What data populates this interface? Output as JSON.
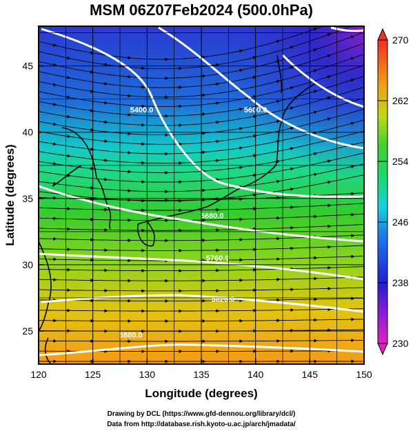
{
  "chart_data": {
    "type": "heatmap",
    "title": "MSM 06Z07Feb2024 (500.0hPa)",
    "xlabel": "Longitude (degrees)",
    "ylabel": "Latitude  (degrees)",
    "xlim": [
      120,
      150
    ],
    "ylim": [
      22.5,
      48
    ],
    "xticks": [
      "120",
      "125",
      "130",
      "135",
      "140",
      "145",
      "150"
    ],
    "yticks": [
      "25",
      "30",
      "35",
      "40",
      "45"
    ],
    "colorbar": {
      "range": [
        230,
        270
      ],
      "ticks": [
        "230",
        "238",
        "246",
        "254",
        "262",
        "270"
      ]
    },
    "contours": [
      {
        "label": "5400.0",
        "lon": 129.5,
        "lat": 41.5
      },
      {
        "label": "5600.0",
        "lon": 140,
        "lat": 41.5
      },
      {
        "label": "5680.0",
        "lon": 136,
        "lat": 33.5
      },
      {
        "label": "5760.0",
        "lon": 136.5,
        "lat": 30.3
      },
      {
        "label": "5820.0",
        "lon": 137,
        "lat": 27.2
      },
      {
        "label": "5880.0",
        "lon": 128.5,
        "lat": 24.5
      }
    ],
    "grid": true
  },
  "credits": {
    "line1": "Drawing by DCL (https://www.gfd-dennou.org/library/dcl/)",
    "line2": "Data from http://database.rish.kyoto-u.ac.jp/arch/jmadata/"
  },
  "colors": {
    "frame": "#000000",
    "contour": "#ffffff",
    "streamline": "#000000"
  }
}
